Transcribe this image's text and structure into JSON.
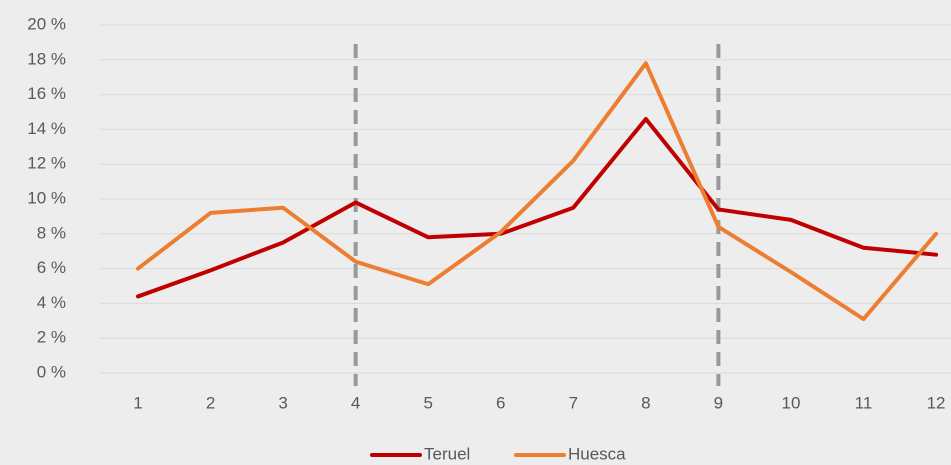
{
  "chart_data": {
    "type": "line",
    "categories": [
      "1",
      "2",
      "3",
      "4",
      "5",
      "6",
      "7",
      "8",
      "9",
      "10",
      "11",
      "12"
    ],
    "series": [
      {
        "name": "Teruel",
        "color": "#c00000",
        "values": [
          4.4,
          5.9,
          7.5,
          9.8,
          7.8,
          8.0,
          9.5,
          14.6,
          9.4,
          8.8,
          7.2,
          6.8
        ]
      },
      {
        "name": "Huesca",
        "color": "#ed7d31",
        "values": [
          6.0,
          9.2,
          9.5,
          6.4,
          5.1,
          8.1,
          12.2,
          17.8,
          8.4,
          5.8,
          3.1,
          8.0
        ]
      }
    ],
    "ylim": [
      0,
      20
    ],
    "yticks": [
      {
        "value": 0,
        "label": "0 %"
      },
      {
        "value": 2,
        "label": "2 %"
      },
      {
        "value": 4,
        "label": "4 %"
      },
      {
        "value": 6,
        "label": "6 %"
      },
      {
        "value": 8,
        "label": "8 %"
      },
      {
        "value": 10,
        "label": "10 %"
      },
      {
        "value": 12,
        "label": "12 %"
      },
      {
        "value": 14,
        "label": "14 %"
      },
      {
        "value": 16,
        "label": "16 %"
      },
      {
        "value": 18,
        "label": "18 %"
      },
      {
        "value": 20,
        "label": "20 %"
      }
    ],
    "grid": true,
    "vertical_lines": [
      4,
      9
    ],
    "legend": "bottom"
  }
}
